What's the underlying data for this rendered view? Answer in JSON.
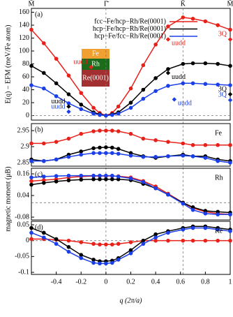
{
  "chart_data": [
    {
      "type": "line",
      "panel": "(a)",
      "ylabel": "E(q) − EFM (meV/Fe atom)",
      "x": [
        -0.6,
        -0.5,
        -0.4,
        -0.3,
        -0.2,
        -0.1,
        -0.05,
        0,
        0.05,
        0.1,
        0.2,
        0.3,
        0.4,
        0.5,
        0.62,
        0.7,
        0.8,
        0.9,
        1
      ],
      "xlim": [
        -0.6,
        1
      ],
      "xticks": [
        {
          "value": -0.6,
          "label": "M̄"
        },
        {
          "value": 0,
          "label": "Γ̄"
        },
        {
          "value": 0.62,
          "label": "K̄"
        },
        {
          "value": 1,
          "label": "M̄"
        }
      ],
      "ylim": [
        -7,
        166
      ],
      "yticks": [
        0,
        20,
        40,
        60,
        80,
        100,
        120,
        140,
        160
      ],
      "hline": 0,
      "legend": "top-right",
      "series": [
        {
          "name": "fcc−Fe/hcp−Rh/Re(0001)",
          "color": "#e8201a",
          "values": [
            133,
            112,
            88,
            62,
            35,
            12,
            4,
            0,
            4,
            14,
            42,
            78,
            110,
            138,
            152,
            150,
            146,
            140,
            133
          ]
        },
        {
          "name": "hcp−Fe/hcp−Rh/Re(0001)",
          "color": "#000000",
          "values": [
            77,
            66,
            50,
            33,
            17,
            5,
            2,
            0,
            2,
            5,
            20,
            40,
            58,
            72,
            80,
            81,
            81,
            80,
            77
          ]
        },
        {
          "name": "hcp−Fe/fcc−Rh/Re(0001)",
          "color": "#1a3ee8",
          "values": [
            47,
            42,
            30,
            19,
            10,
            3,
            1,
            0,
            1,
            3,
            12,
            26,
            38,
            46,
            50,
            50,
            49,
            48,
            47
          ]
        }
      ],
      "annotations": [
        {
          "text": "uudd",
          "x": 0.5,
          "y": 118,
          "color": "#e8201a"
        },
        {
          "text": "3Q",
          "x": 1,
          "y": 118,
          "color": "#e8201a"
        },
        {
          "text": "uudd",
          "x": -0.12,
          "y": 75,
          "color": "#e8201a"
        },
        {
          "text": "uudd",
          "x": 0.5,
          "y": 66,
          "color": "#000000"
        },
        {
          "text": "3Q",
          "x": 1,
          "y": 33,
          "color": "#000000"
        },
        {
          "text": "uudd",
          "x": -0.3,
          "y": 14,
          "color": "#000000"
        },
        {
          "text": "uudd",
          "x": 0.55,
          "y": 25,
          "color": "#1a3ee8"
        },
        {
          "text": "3Q",
          "x": 1,
          "y": 24,
          "color": "#1a3ee8"
        },
        {
          "text": "uudd",
          "x": -0.3,
          "y": 6,
          "color": "#1a3ee8"
        }
      ]
    },
    {
      "type": "line",
      "panel": "(b)",
      "label": "Fe",
      "x": [
        -0.6,
        -0.5,
        -0.4,
        -0.3,
        -0.2,
        -0.1,
        -0.05,
        0,
        0.05,
        0.1,
        0.2,
        0.3,
        0.4,
        0.5,
        0.62,
        0.7,
        0.8,
        0.9,
        1
      ],
      "xlim": [
        -0.6,
        1
      ],
      "ylim": [
        2.839,
        2.972
      ],
      "yticks": [
        2.85,
        2.9,
        2.95
      ],
      "series": [
        {
          "color": "#e8201a",
          "values": [
            2.91,
            2.91,
            2.915,
            2.925,
            2.94,
            2.948,
            2.95,
            2.95,
            2.95,
            2.948,
            2.94,
            2.925,
            2.92,
            2.915,
            2.91,
            2.905,
            2.905,
            2.905,
            2.905
          ]
        },
        {
          "color": "#000000",
          "values": [
            2.86,
            2.855,
            2.86,
            2.875,
            2.885,
            2.895,
            2.897,
            2.898,
            2.897,
            2.893,
            2.88,
            2.87,
            2.865,
            2.87,
            2.875,
            2.87,
            2.87,
            2.86,
            2.855
          ]
        },
        {
          "color": "#1a3ee8",
          "values": [
            2.855,
            2.855,
            2.86,
            2.868,
            2.875,
            2.88,
            2.88,
            2.88,
            2.88,
            2.878,
            2.872,
            2.868,
            2.868,
            2.87,
            2.872,
            2.87,
            2.865,
            2.855,
            2.85
          ]
        }
      ]
    },
    {
      "type": "line",
      "panel": "(c)",
      "label": "Rh",
      "ylabel": "magnetic moment (μB)",
      "x": [
        -0.6,
        -0.5,
        -0.4,
        -0.3,
        -0.2,
        -0.1,
        -0.05,
        0,
        0.05,
        0.1,
        0.2,
        0.3,
        0.4,
        0.5,
        0.62,
        0.7,
        0.8,
        0.9,
        1
      ],
      "xlim": [
        -0.6,
        1
      ],
      "ylim": [
        -0.0955,
        0.191
      ],
      "yticks": [
        -0.08,
        0.04,
        0.16
      ],
      "hline": 0,
      "series": [
        {
          "color": "#e8201a",
          "values": [
            0.12,
            0.125,
            0.13,
            0.14,
            0.145,
            0.148,
            0.148,
            0.148,
            0.148,
            0.147,
            0.14,
            0.12,
            0.09,
            0.05,
            0,
            -0.03,
            -0.05,
            -0.06,
            -0.065
          ]
        },
        {
          "color": "#000000",
          "values": [
            0.1,
            0.11,
            0.118,
            0.124,
            0.128,
            0.13,
            0.13,
            0.13,
            0.13,
            0.13,
            0.125,
            0.105,
            0.08,
            0.045,
            0,
            -0.025,
            -0.045,
            -0.05,
            -0.055
          ]
        },
        {
          "color": "#1a3ee8",
          "values": [
            0.14,
            0.145,
            0.148,
            0.15,
            0.15,
            0.15,
            0.15,
            0.15,
            0.15,
            0.145,
            0.135,
            0.115,
            0.08,
            0.045,
            -0.005,
            -0.04,
            -0.06,
            -0.065,
            -0.065
          ]
        }
      ]
    },
    {
      "type": "line",
      "panel": "(d)",
      "label": "Re",
      "xlabel": "q (2π/a)",
      "x": [
        -0.6,
        -0.5,
        -0.4,
        -0.3,
        -0.2,
        -0.1,
        -0.05,
        0,
        0.05,
        0.1,
        0.2,
        0.3,
        0.4,
        0.5,
        0.62,
        0.7,
        0.8,
        0.9,
        1
      ],
      "xlim": [
        -0.6,
        1
      ],
      "xticks": [
        -0.4,
        -0.2,
        0,
        0.2,
        0.4,
        0.6,
        0.8,
        1
      ],
      "ylim": [
        -0.1065,
        0.061
      ],
      "yticks": [
        -0.1,
        -0.05,
        0,
        0.05
      ],
      "hline": 0,
      "series": [
        {
          "color": "#e8201a",
          "values": [
            0.005,
            0.005,
            0.003,
            0,
            -0.005,
            -0.01,
            -0.012,
            -0.012,
            -0.012,
            -0.01,
            -0.005,
            0,
            0,
            0,
            0,
            0,
            0,
            0,
            0
          ]
        },
        {
          "color": "#000000",
          "values": [
            0.04,
            0.025,
            0.005,
            -0.02,
            -0.045,
            -0.06,
            -0.065,
            -0.065,
            -0.063,
            -0.055,
            -0.03,
            0,
            0.02,
            0.03,
            0.04,
            0.045,
            0.045,
            0.04,
            0.035
          ]
        },
        {
          "color": "#1a3ee8",
          "values": [
            0.025,
            0.01,
            -0.01,
            -0.035,
            -0.055,
            -0.07,
            -0.072,
            -0.072,
            -0.07,
            -0.06,
            -0.04,
            -0.01,
            0.01,
            0.025,
            0.035,
            0.04,
            0.04,
            0.035,
            0.03
          ]
        }
      ]
    }
  ],
  "inset": [
    "Fe",
    "Rh",
    "Re(0001)"
  ]
}
